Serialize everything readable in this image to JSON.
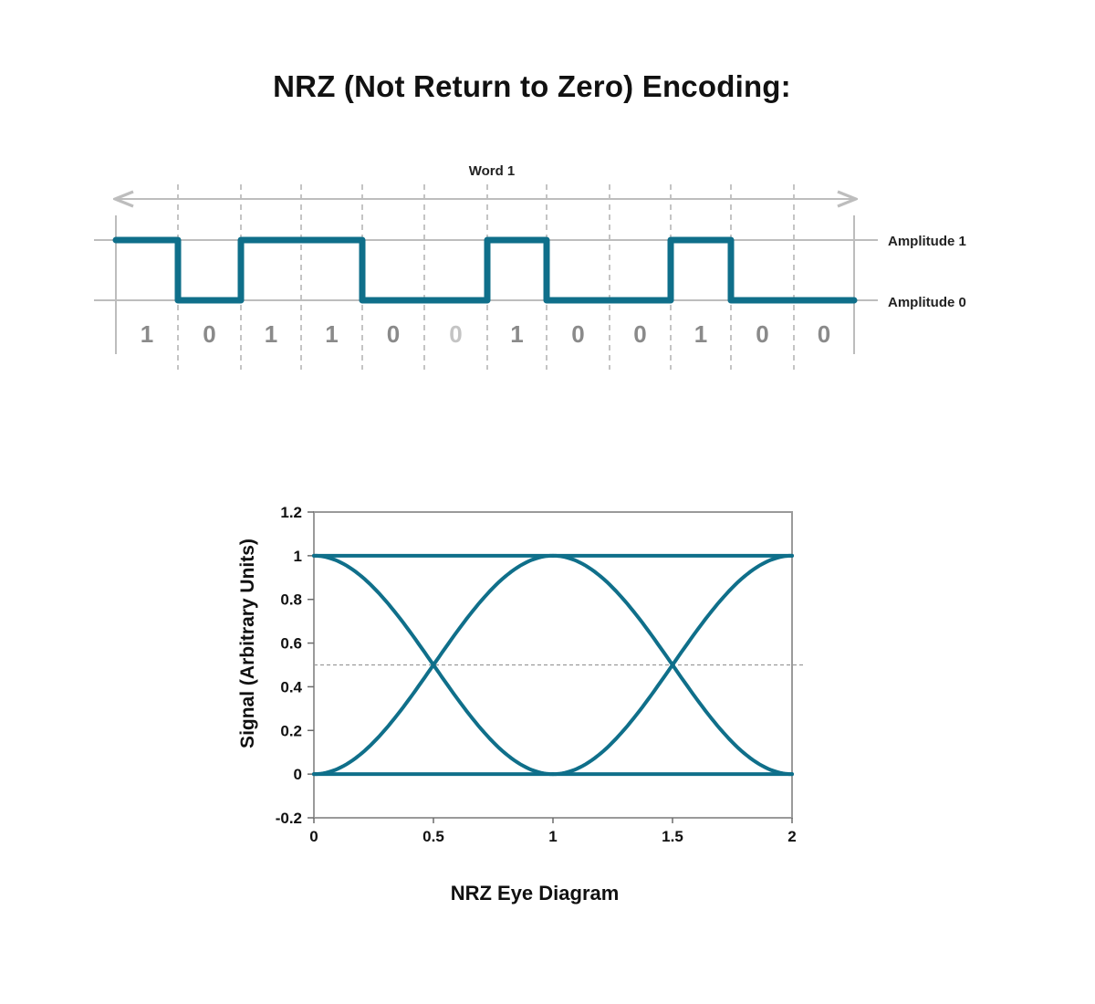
{
  "title": "NRZ (Not Return to Zero) Encoding:",
  "waveform": {
    "word_label": "Word 1",
    "level_labels": {
      "high": "Amplitude 1",
      "low": "Amplitude 0"
    },
    "bits": [
      "1",
      "0",
      "1",
      "1",
      "0",
      "0",
      "1",
      "0",
      "0",
      "1",
      "0",
      "0"
    ],
    "colors": {
      "signal": "#0f6f8a",
      "grid": "#bdbdbd",
      "bit_text": "#8a8a8a",
      "bit_text_faint": "#c4c4c4"
    }
  },
  "chart_data": {
    "type": "line",
    "title": "",
    "xlabel": "NRZ Eye Diagram",
    "ylabel": "Signal (Arbitrary Units)",
    "xlim": [
      0,
      2
    ],
    "ylim": [
      -0.2,
      1.2
    ],
    "xticks": [
      "0",
      "0.5",
      "1",
      "1.5",
      "2"
    ],
    "yticks": [
      "1.2",
      "1",
      "0.8",
      "0.6",
      "0.4",
      "0.2",
      "0",
      "-0.2"
    ],
    "threshold": 0.5,
    "grid": false,
    "color": "#0f6f8a",
    "series": [
      {
        "x": [
          0,
          2
        ],
        "y": [
          1,
          1
        ]
      },
      {
        "x": [
          0,
          2
        ],
        "y": [
          0,
          0
        ]
      },
      {
        "x": [
          0,
          0.25,
          0.5,
          0.75,
          1
        ],
        "y": [
          1,
          0.85,
          0.5,
          0.15,
          0
        ]
      },
      {
        "x": [
          0,
          0.25,
          0.5,
          0.75,
          1
        ],
        "y": [
          0,
          0.15,
          0.5,
          0.85,
          1
        ]
      },
      {
        "x": [
          1,
          1.25,
          1.5,
          1.75,
          2
        ],
        "y": [
          1,
          0.85,
          0.5,
          0.15,
          0
        ]
      },
      {
        "x": [
          1,
          1.25,
          1.5,
          1.75,
          2
        ],
        "y": [
          0,
          0.15,
          0.5,
          0.85,
          1
        ]
      }
    ]
  }
}
